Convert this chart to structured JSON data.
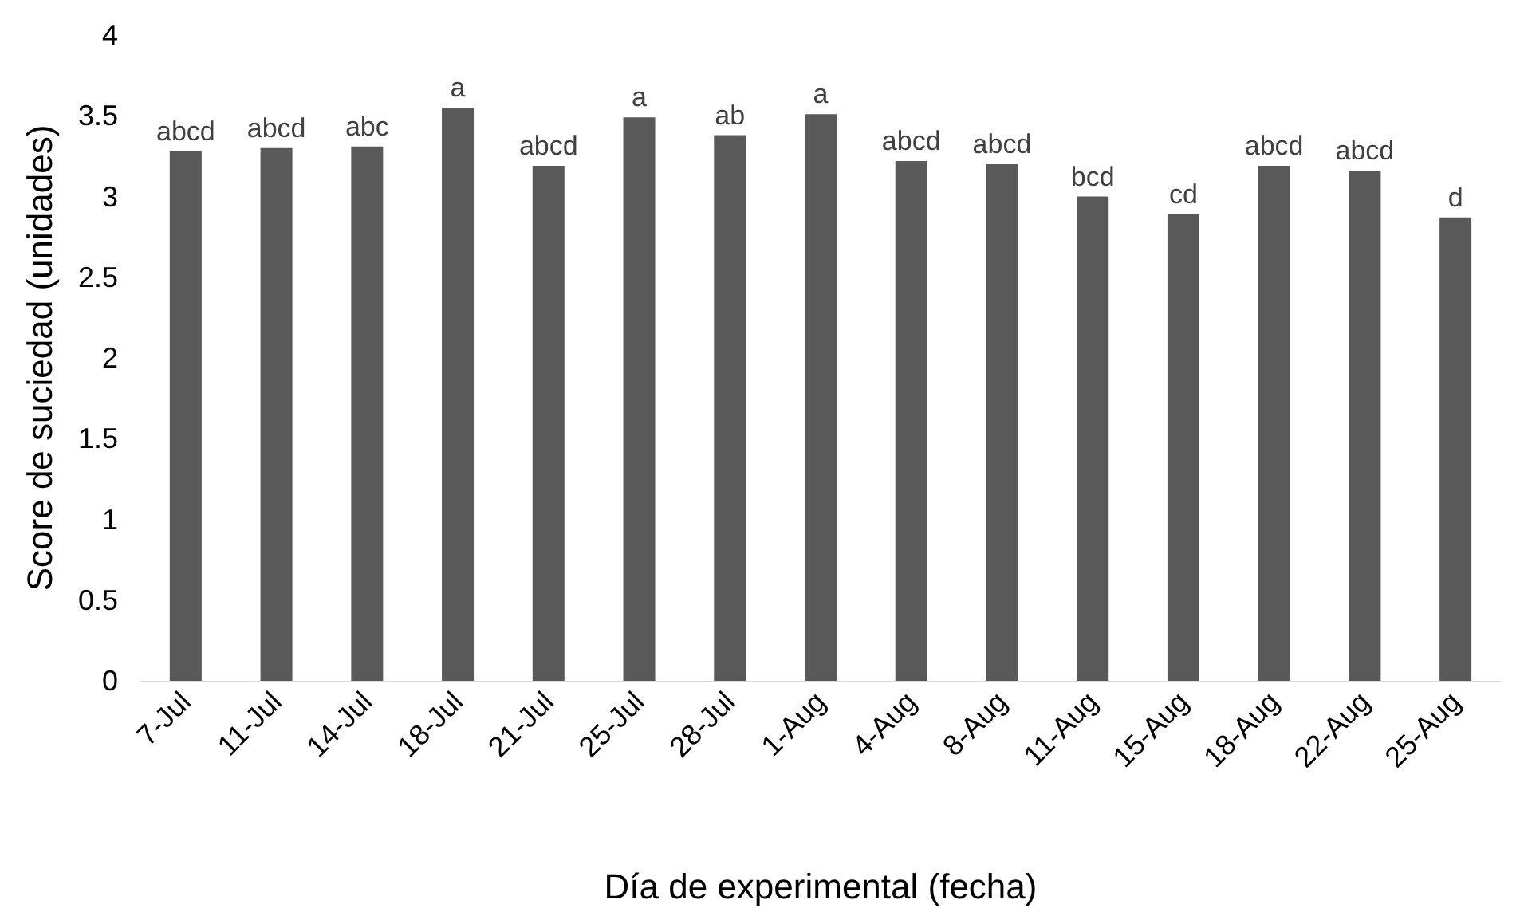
{
  "chart_data": {
    "type": "bar",
    "xlabel": "Día de experimental (fecha)",
    "ylabel": "Score de suciedad (unidades)",
    "categories": [
      "7-Jul",
      "11-Jul",
      "14-Jul",
      "18-Jul",
      "21-Jul",
      "25-Jul",
      "28-Jul",
      "1-Aug",
      "4-Aug",
      "8-Aug",
      "11-Aug",
      "15-Aug",
      "18-Aug",
      "22-Aug",
      "25-Aug"
    ],
    "values": [
      3.28,
      3.3,
      3.31,
      3.55,
      3.19,
      3.49,
      3.38,
      3.51,
      3.22,
      3.2,
      3.0,
      2.89,
      3.19,
      3.16,
      2.87
    ],
    "color": "#595959",
    "ylim": [
      0,
      4
    ],
    "yticks": [
      0,
      0.5,
      1,
      1.5,
      2,
      2.5,
      3,
      3.5,
      4
    ],
    "grid": false,
    "annotations": [
      {
        "text": "abcd",
        "x": "7-Jul",
        "y": 3.28
      },
      {
        "text": "abcd",
        "x": "11-Jul",
        "y": 3.3
      },
      {
        "text": "abc",
        "x": "14-Jul",
        "y": 3.31
      },
      {
        "text": "a",
        "x": "18-Jul",
        "y": 3.55
      },
      {
        "text": "abcd",
        "x": "21-Jul",
        "y": 3.19
      },
      {
        "text": "a",
        "x": "25-Jul",
        "y": 3.49
      },
      {
        "text": "ab",
        "x": "28-Jul",
        "y": 3.38
      },
      {
        "text": "a",
        "x": "1-Aug",
        "y": 3.51
      },
      {
        "text": "abcd",
        "x": "4-Aug",
        "y": 3.22
      },
      {
        "text": "abcd",
        "x": "8-Aug",
        "y": 3.2
      },
      {
        "text": "bcd",
        "x": "11-Aug",
        "y": 3.0
      },
      {
        "text": "cd",
        "x": "15-Aug",
        "y": 2.89
      },
      {
        "text": "abcd",
        "x": "18-Aug",
        "y": 3.19
      },
      {
        "text": "abcd",
        "x": "22-Aug",
        "y": 3.16
      },
      {
        "text": "d",
        "x": "25-Aug",
        "y": 2.87
      }
    ]
  }
}
